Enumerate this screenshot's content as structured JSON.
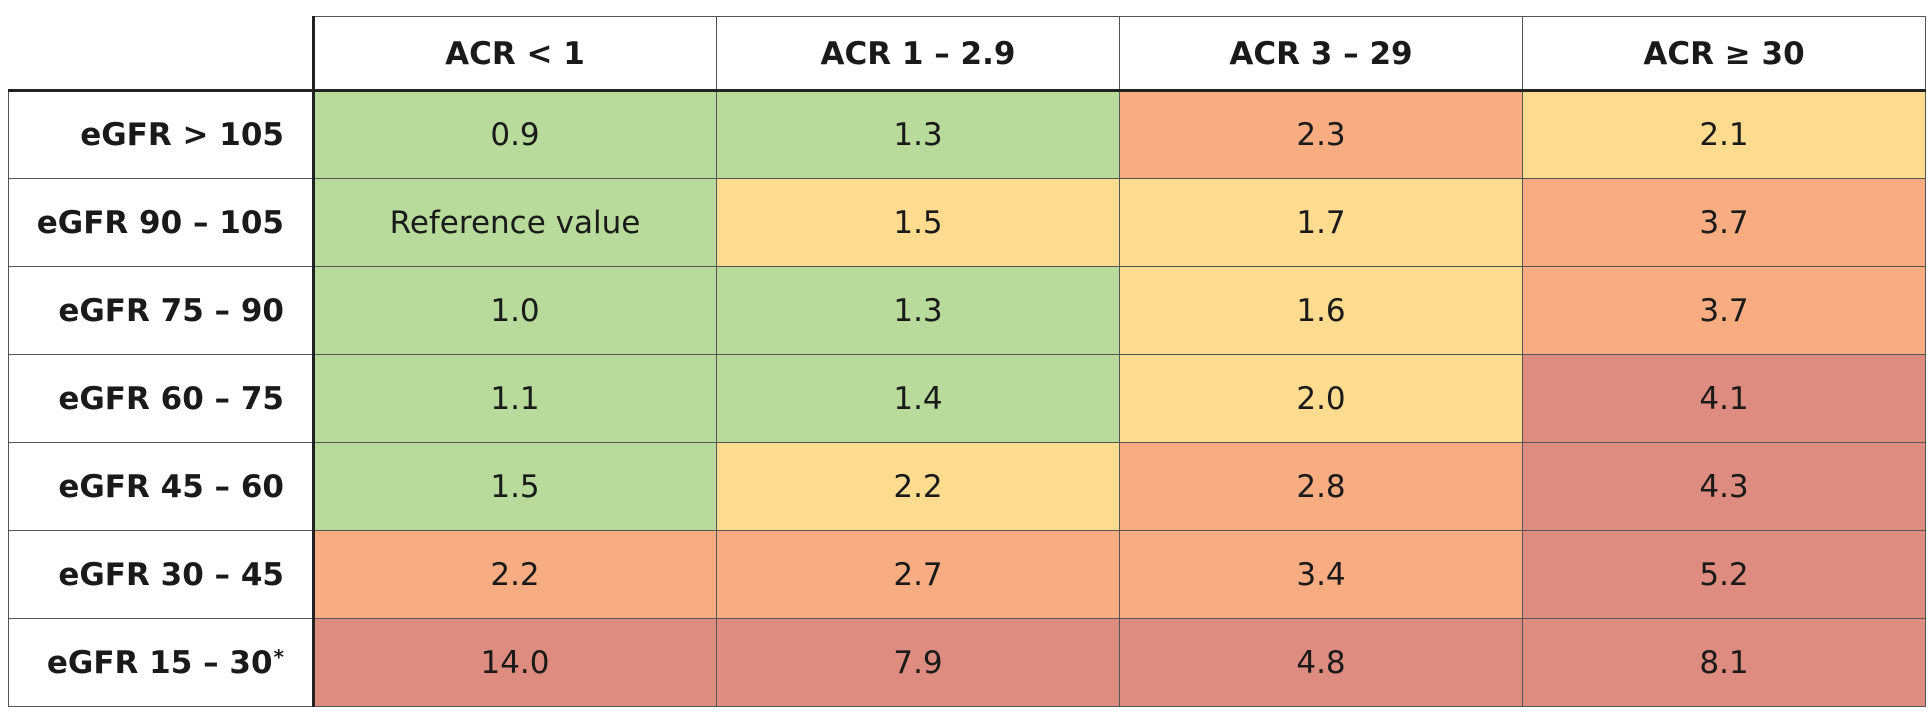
{
  "chart_data": {
    "type": "heatmap",
    "columns": [
      "ACR < 1",
      "ACR 1 – 2.9",
      "ACR 3 – 29",
      "ACR ≥ 30"
    ],
    "rows": [
      {
        "label": "eGFR > 105",
        "values": [
          "0.9",
          "1.3",
          "2.3",
          "2.1"
        ]
      },
      {
        "label": "eGFR 90 – 105",
        "values": [
          "Reference value",
          "1.5",
          "1.7",
          "3.7"
        ]
      },
      {
        "label": "eGFR 75 – 90",
        "values": [
          "1.0",
          "1.3",
          "1.6",
          "3.7"
        ]
      },
      {
        "label": "eGFR 60 – 75",
        "values": [
          "1.1",
          "1.4",
          "2.0",
          "4.1"
        ]
      },
      {
        "label": "eGFR 45 – 60",
        "values": [
          "1.5",
          "2.2",
          "2.8",
          "4.3"
        ]
      },
      {
        "label": "eGFR 30 – 45",
        "values": [
          "2.2",
          "2.7",
          "3.4",
          "5.2"
        ]
      },
      {
        "label": "eGFR 15 – 30",
        "label_suffix": "*",
        "values": [
          "14.0",
          "7.9",
          "4.8",
          "8.1"
        ]
      }
    ],
    "risk_levels": [
      [
        "low",
        "low",
        "high",
        "moderate"
      ],
      [
        "low",
        "moderate",
        "moderate",
        "high"
      ],
      [
        "low",
        "low",
        "moderate",
        "high"
      ],
      [
        "low",
        "low",
        "moderate",
        "very-high"
      ],
      [
        "low",
        "moderate",
        "high",
        "very-high"
      ],
      [
        "high",
        "high",
        "high",
        "very-high"
      ],
      [
        "very-high",
        "very-high",
        "very-high",
        "very-high"
      ]
    ],
    "colors": {
      "low": "#b8da9b",
      "moderate": "#fddc8f",
      "high": "#f8ac81",
      "very-high": "#de8c80"
    }
  }
}
